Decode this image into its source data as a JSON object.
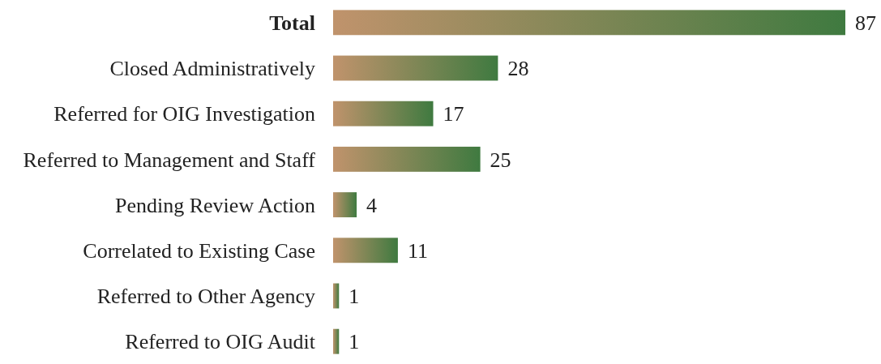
{
  "chart_data": {
    "type": "bar",
    "orientation": "horizontal",
    "categories": [
      "Total",
      "Closed Administratively",
      "Referred for OIG Investigation",
      "Referred to Management and Staff",
      "Pending Review Action",
      "Correlated to Existing Case",
      "Referred to Other Agency",
      "Referred to OIG Audit"
    ],
    "values": [
      87,
      28,
      17,
      25,
      4,
      11,
      1,
      1
    ],
    "color": "#3f7a40",
    "relative": false,
    "data_labels": true
  }
}
